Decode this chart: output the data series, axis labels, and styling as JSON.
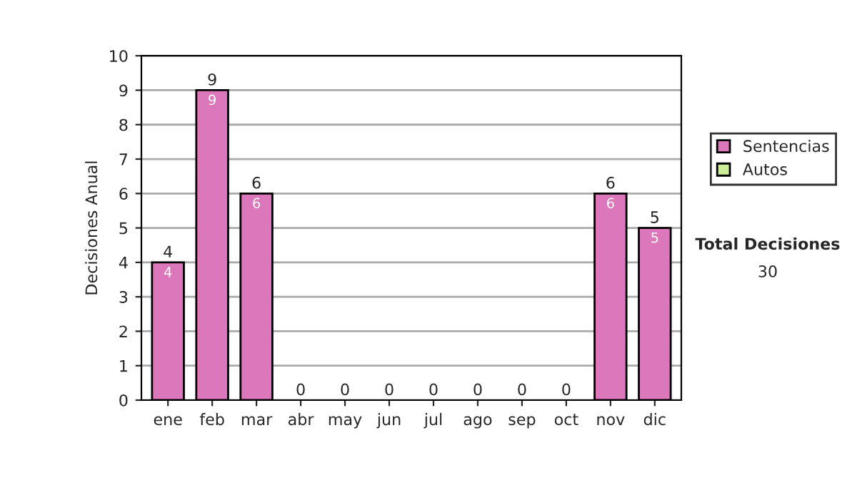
{
  "chart_data": {
    "type": "bar",
    "stacked": true,
    "ylabel": "Decisiones Anual",
    "categories": [
      "ene",
      "feb",
      "mar",
      "abr",
      "may",
      "jun",
      "jul",
      "ago",
      "sep",
      "oct",
      "nov",
      "dic"
    ],
    "series": [
      {
        "name": "Sentencias",
        "color": "#dd77bb",
        "values": [
          4,
          9,
          6,
          0,
          0,
          0,
          0,
          0,
          0,
          0,
          6,
          5
        ],
        "value_labels": [
          "4",
          "9",
          "6",
          null,
          null,
          null,
          null,
          null,
          null,
          null,
          "6",
          "5"
        ]
      },
      {
        "name": "Autos",
        "color": "#ccee99",
        "values": [
          0,
          0,
          0,
          0,
          0,
          0,
          0,
          0,
          0,
          0,
          0,
          0
        ]
      }
    ],
    "totals": [
      "4",
      "9",
      "6",
      "0",
      "0",
      "0",
      "0",
      "0",
      "0",
      "0",
      "6",
      "5"
    ],
    "ylim": [
      0,
      10
    ],
    "yticks": [
      0,
      1,
      2,
      3,
      4,
      5,
      6,
      7,
      8,
      9,
      10
    ],
    "grid": "y",
    "legend": "right",
    "annotations": [
      "Total Decisiones",
      "30"
    ]
  }
}
